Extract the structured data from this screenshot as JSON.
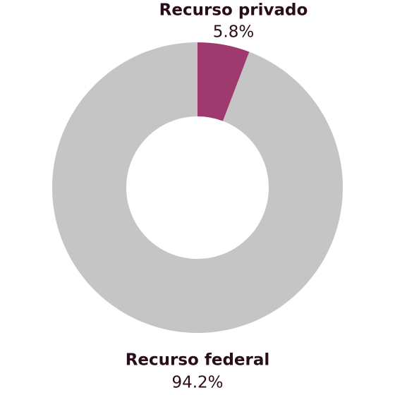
{
  "chart_data": {
    "type": "donut",
    "categories": [
      "Recurso privado",
      "Recurso federal"
    ],
    "values": [
      5.8,
      94.2
    ],
    "value_labels": [
      "5.8%",
      "94.2%"
    ],
    "colors": [
      "#9e3a6e",
      "#c6c5c5"
    ]
  }
}
